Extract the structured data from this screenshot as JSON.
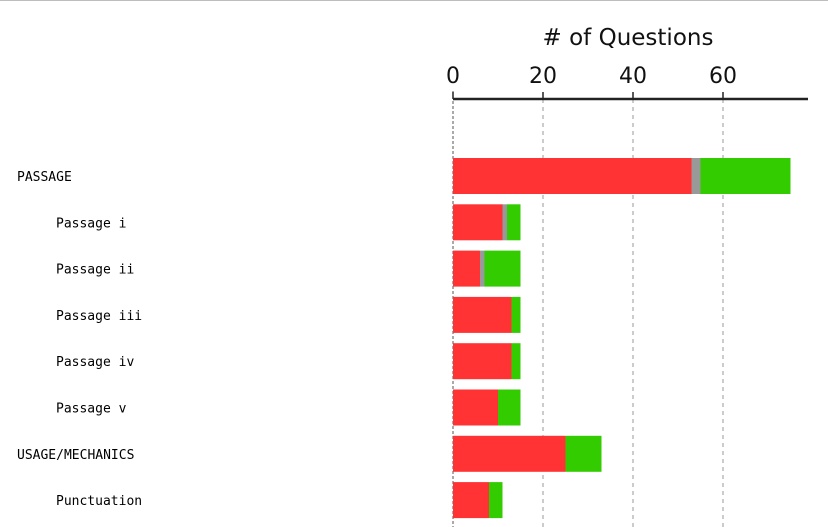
{
  "chart_data": {
    "type": "bar",
    "orientation": "horizontal",
    "stacked": true,
    "xlabel": "# of Questions",
    "xlabel_position": "top",
    "xlim": [
      0,
      78
    ],
    "xticks": [
      0,
      20,
      40,
      60
    ],
    "grid": "vertical-dashed",
    "categories": [
      "PASSAGE",
      "Passage i",
      "Passage ii",
      "Passage iii",
      "Passage iv",
      "Passage v",
      "USAGE/MECHANICS",
      "Punctuation"
    ],
    "category_levels": [
      0,
      1,
      1,
      1,
      1,
      1,
      0,
      1
    ],
    "series": [
      {
        "color": "#ff3333",
        "values": [
          53,
          11,
          6,
          13,
          13,
          10,
          25,
          8
        ]
      },
      {
        "color": "#999999",
        "values": [
          2,
          1,
          1,
          0,
          0,
          0,
          0,
          0
        ]
      },
      {
        "color": "#33cc00",
        "values": [
          20,
          3,
          8,
          2,
          2,
          5,
          8,
          3
        ]
      }
    ]
  }
}
